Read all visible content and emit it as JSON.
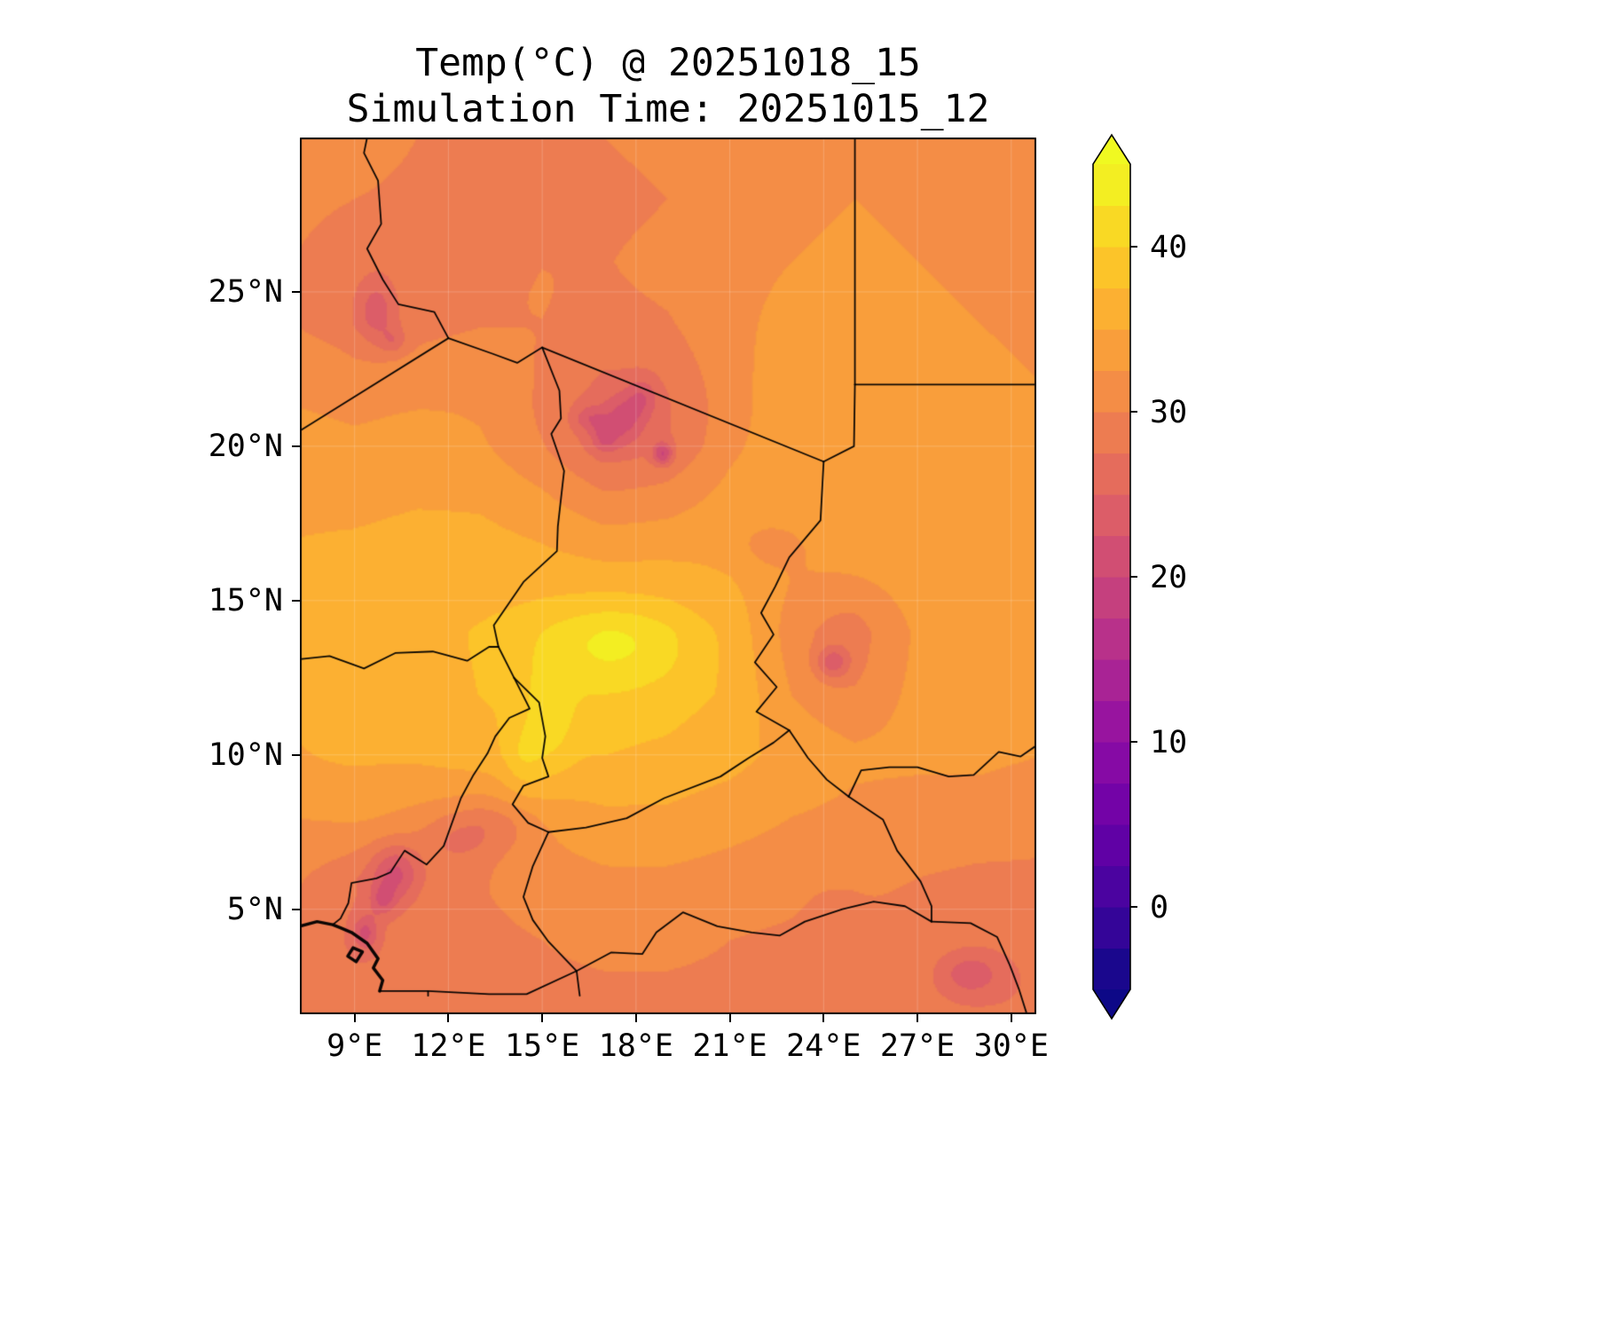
{
  "title": {
    "line1": "Temp(°C) @ 20251018_15",
    "line2": "Simulation Time: 20251015_12"
  },
  "chart_data": {
    "type": "heatmap",
    "title": "Temp(°C) @ 20251018_15",
    "subtitle": "Simulation Time: 20251015_12",
    "variable": "Temperature",
    "units": "°C",
    "lon_range": [
      7.25,
      30.8
    ],
    "lat_range": [
      1.6,
      30.0
    ],
    "x_ticks": [
      {
        "lon": 9,
        "label": "9°E"
      },
      {
        "lon": 12,
        "label": "12°E"
      },
      {
        "lon": 15,
        "label": "15°E"
      },
      {
        "lon": 18,
        "label": "18°E"
      },
      {
        "lon": 21,
        "label": "21°E"
      },
      {
        "lon": 24,
        "label": "24°E"
      },
      {
        "lon": 27,
        "label": "27°E"
      },
      {
        "lon": 30,
        "label": "30°E"
      }
    ],
    "y_ticks": [
      {
        "lat": 5,
        "label": "5°N"
      },
      {
        "lat": 10,
        "label": "10°N"
      },
      {
        "lat": 15,
        "label": "15°N"
      },
      {
        "lat": 20,
        "label": "20°N"
      },
      {
        "lat": 25,
        "label": "25°N"
      }
    ],
    "colorbar": {
      "vmin": -5,
      "vmax": 45,
      "band_step": 2.5,
      "extend": "both",
      "ticks": [
        {
          "value": 40,
          "label": "40"
        },
        {
          "value": 30,
          "label": "30"
        },
        {
          "value": 20,
          "label": "20"
        },
        {
          "value": 10,
          "label": "10"
        },
        {
          "value": 0,
          "label": "0"
        }
      ]
    },
    "colormap": {
      "name": "plasma",
      "stops": [
        [
          0.0,
          "#0d0887"
        ],
        [
          0.1,
          "#41049d"
        ],
        [
          0.2,
          "#6a00a8"
        ],
        [
          0.3,
          "#8f0da4"
        ],
        [
          0.4,
          "#b12a90"
        ],
        [
          0.5,
          "#cc4778"
        ],
        [
          0.6,
          "#e16462"
        ],
        [
          0.7,
          "#f1844b"
        ],
        [
          0.8,
          "#fca636"
        ],
        [
          0.9,
          "#fcce25"
        ],
        [
          1.0,
          "#f0f921"
        ]
      ]
    },
    "grid": {
      "lons": [
        7,
        9,
        11,
        13,
        15,
        17,
        19,
        21,
        23,
        25,
        27,
        29,
        31
      ],
      "lats": [
        30,
        28,
        26,
        24,
        22,
        20,
        18,
        16,
        14,
        12,
        10,
        8,
        6,
        4,
        2
      ],
      "values": [
        [
          31,
          31,
          30,
          29.5,
          29.5,
          30,
          30.5,
          31,
          32,
          32,
          32,
          31.5,
          31
        ],
        [
          30.5,
          30,
          29.5,
          29,
          29,
          29.5,
          30,
          31,
          32,
          32.5,
          32,
          31.5,
          31.5
        ],
        [
          30,
          29,
          29,
          29.5,
          30,
          30,
          30.5,
          31.5,
          32.5,
          33,
          32.5,
          32,
          32
        ],
        [
          30,
          28.5,
          29,
          30,
          30.5,
          30,
          30.5,
          32,
          33.5,
          33.5,
          33,
          32.5,
          32
        ],
        [
          32,
          31.5,
          32,
          32.5,
          31.5,
          30,
          30.5,
          32.5,
          34.5,
          34,
          33.5,
          33,
          32.5
        ],
        [
          33.5,
          33,
          33.5,
          33.5,
          32,
          29.5,
          30,
          33,
          34.5,
          34.5,
          34,
          33.5,
          33
        ],
        [
          34.5,
          34.5,
          35,
          35,
          34,
          32,
          32.5,
          34,
          34.5,
          34.5,
          34.5,
          34,
          33.5
        ],
        [
          35.5,
          36,
          36.5,
          36.5,
          36,
          35.5,
          35.5,
          35,
          33.5,
          34,
          34.5,
          34,
          33.5
        ],
        [
          36,
          36.5,
          37,
          37.5,
          38,
          38.5,
          38,
          36.5,
          32.5,
          31.5,
          33.5,
          34.5,
          34
        ],
        [
          35.5,
          36,
          36.5,
          37.5,
          38.5,
          39,
          38.5,
          37,
          33,
          31.5,
          33.5,
          34,
          33.5
        ],
        [
          34,
          35,
          35.5,
          36.5,
          37,
          37.5,
          37,
          36,
          34,
          33,
          33,
          33,
          32.5
        ],
        [
          32.5,
          33,
          32,
          31,
          33.5,
          34.5,
          34.5,
          33.5,
          32.5,
          32,
          31.5,
          31.5,
          31
        ],
        [
          30.5,
          28,
          29,
          30,
          31,
          32,
          32,
          31.5,
          31,
          30.5,
          30,
          29.5,
          29.5
        ],
        [
          29,
          27.5,
          28.5,
          29.5,
          30,
          30.5,
          30.5,
          30,
          29.5,
          29.5,
          29,
          28.5,
          28
        ],
        [
          28.5,
          28,
          28.5,
          29,
          29.5,
          29.5,
          29.5,
          29.5,
          29,
          29,
          28.5,
          28,
          27.5
        ]
      ]
    },
    "anomalies": [
      [
        17.5,
        21.0,
        2.5,
        1.8,
        -3.5
      ],
      [
        17.6,
        20.9,
        0.45,
        0.55,
        -5
      ],
      [
        18.2,
        21.6,
        0.35,
        0.45,
        -4
      ],
      [
        17.0,
        20.3,
        0.3,
        0.35,
        -4.5
      ],
      [
        18.85,
        19.75,
        0.22,
        0.25,
        -8
      ],
      [
        16.5,
        20.9,
        0.35,
        0.3,
        -4
      ],
      [
        9.7,
        24.4,
        0.45,
        0.8,
        -5
      ],
      [
        10.25,
        23.4,
        0.3,
        0.3,
        -3.5
      ],
      [
        24.3,
        13.0,
        0.38,
        0.38,
        -6.5
      ],
      [
        24.6,
        14.0,
        1.4,
        1.6,
        -2.5
      ],
      [
        22.3,
        16.8,
        0.8,
        0.55,
        -2.5
      ],
      [
        10.3,
        6.2,
        0.55,
        0.65,
        -7
      ],
      [
        9.9,
        5.3,
        0.3,
        0.35,
        -5
      ],
      [
        9.35,
        4.25,
        0.28,
        0.4,
        -6
      ],
      [
        12.2,
        7.2,
        0.8,
        0.6,
        -3
      ],
      [
        13.6,
        7.7,
        1.0,
        0.6,
        -2.5
      ],
      [
        17.3,
        13.6,
        1.7,
        0.95,
        4.5
      ],
      [
        15.3,
        11.2,
        0.55,
        1.3,
        3.5
      ],
      [
        14.4,
        9.9,
        0.45,
        0.9,
        3
      ],
      [
        8.6,
        10.6,
        0.9,
        0.55,
        2
      ],
      [
        28.7,
        2.9,
        0.7,
        0.5,
        -5
      ],
      [
        24.4,
        4.9,
        0.5,
        0.4,
        -2.5
      ]
    ],
    "borders": [
      [
        [
          7.25,
          20.5
        ],
        [
          12.0,
          23.5
        ]
      ],
      [
        [
          12.0,
          23.5
        ],
        [
          13.4,
          23.0
        ],
        [
          14.2,
          22.7
        ],
        [
          15.0,
          23.2
        ]
      ],
      [
        [
          15.0,
          23.2
        ],
        [
          24.0,
          19.5
        ]
      ],
      [
        [
          25.0,
          30.0
        ],
        [
          25.0,
          22.0
        ]
      ],
      [
        [
          25.0,
          22.0
        ],
        [
          30.8,
          22.0
        ]
      ],
      [
        [
          25.0,
          22.0
        ],
        [
          24.97,
          20.0
        ],
        [
          24.0,
          19.5
        ]
      ],
      [
        [
          24.0,
          19.5
        ],
        [
          23.9,
          17.6
        ],
        [
          22.9,
          16.4
        ],
        [
          22.45,
          15.45
        ],
        [
          22.0,
          14.6
        ],
        [
          22.4,
          13.9
        ],
        [
          21.8,
          13.0
        ],
        [
          22.5,
          12.2
        ],
        [
          21.85,
          11.4
        ],
        [
          22.9,
          10.8
        ]
      ],
      [
        [
          22.9,
          10.8
        ],
        [
          23.5,
          9.9
        ],
        [
          24.1,
          9.2
        ],
        [
          24.8,
          8.65
        ]
      ],
      [
        [
          24.8,
          8.65
        ],
        [
          25.2,
          9.5
        ],
        [
          26.1,
          9.6
        ],
        [
          27.0,
          9.6
        ],
        [
          28.0,
          9.3
        ],
        [
          28.8,
          9.35
        ],
        [
          29.6,
          10.1
        ],
        [
          30.3,
          9.95
        ],
        [
          30.8,
          10.3
        ]
      ],
      [
        [
          24.8,
          8.65
        ],
        [
          25.9,
          7.9
        ],
        [
          26.35,
          6.9
        ],
        [
          27.1,
          5.9
        ],
        [
          27.45,
          5.1
        ],
        [
          27.45,
          4.6
        ]
      ],
      [
        [
          27.45,
          4.6
        ],
        [
          28.7,
          4.55
        ],
        [
          29.55,
          4.1
        ],
        [
          29.95,
          3.2
        ],
        [
          30.25,
          2.4
        ],
        [
          30.5,
          1.6
        ]
      ],
      [
        [
          16.1,
          3.0
        ],
        [
          17.2,
          3.6
        ],
        [
          18.2,
          3.55
        ],
        [
          18.65,
          4.25
        ],
        [
          19.5,
          4.9
        ],
        [
          20.6,
          4.45
        ],
        [
          21.7,
          4.25
        ],
        [
          22.6,
          4.15
        ],
        [
          23.4,
          4.6
        ],
        [
          24.6,
          5.0
        ],
        [
          25.6,
          5.25
        ],
        [
          26.6,
          5.1
        ],
        [
          27.45,
          4.6
        ]
      ],
      [
        [
          12.0,
          23.5
        ],
        [
          11.55,
          24.35
        ],
        [
          10.4,
          24.6
        ],
        [
          9.9,
          25.4
        ],
        [
          9.4,
          26.4
        ],
        [
          9.85,
          27.2
        ],
        [
          9.75,
          28.6
        ],
        [
          9.3,
          29.5
        ],
        [
          9.4,
          30.0
        ]
      ],
      [
        [
          15.0,
          23.2
        ],
        [
          15.55,
          21.8
        ],
        [
          15.6,
          20.9
        ],
        [
          15.29,
          20.4
        ],
        [
          15.7,
          19.2
        ],
        [
          15.5,
          17.4
        ],
        [
          15.47,
          16.6
        ],
        [
          14.4,
          15.6
        ],
        [
          13.45,
          14.2
        ],
        [
          13.6,
          13.5
        ]
      ],
      [
        [
          7.25,
          13.1
        ],
        [
          8.2,
          13.2
        ],
        [
          9.3,
          12.8
        ],
        [
          10.3,
          13.3
        ],
        [
          11.5,
          13.35
        ],
        [
          12.6,
          13.05
        ],
        [
          13.3,
          13.5
        ],
        [
          13.6,
          13.5
        ]
      ],
      [
        [
          13.6,
          13.5
        ],
        [
          14.1,
          12.5
        ]
      ],
      [
        [
          14.1,
          12.5
        ],
        [
          14.6,
          11.5
        ],
        [
          13.95,
          11.2
        ],
        [
          13.5,
          10.6
        ],
        [
          13.25,
          10.05
        ],
        [
          12.8,
          9.35
        ],
        [
          12.4,
          8.6
        ],
        [
          11.85,
          7.05
        ],
        [
          11.3,
          6.45
        ],
        [
          10.6,
          6.9
        ],
        [
          10.15,
          6.2
        ],
        [
          9.7,
          6.0
        ],
        [
          8.9,
          5.85
        ],
        [
          8.8,
          5.2
        ],
        [
          8.55,
          4.7
        ],
        [
          8.3,
          4.5
        ]
      ],
      [
        [
          14.1,
          12.5
        ],
        [
          14.9,
          11.7
        ],
        [
          15.1,
          10.6
        ],
        [
          15.0,
          9.9
        ],
        [
          15.2,
          9.3
        ],
        [
          14.4,
          9.0
        ],
        [
          14.05,
          8.4
        ],
        [
          14.55,
          7.8
        ],
        [
          15.2,
          7.5
        ]
      ],
      [
        [
          15.2,
          7.5
        ],
        [
          16.4,
          7.65
        ],
        [
          17.7,
          7.95
        ],
        [
          18.9,
          8.6
        ],
        [
          20.7,
          9.3
        ],
        [
          21.6,
          9.9
        ],
        [
          22.4,
          10.4
        ],
        [
          22.9,
          10.8
        ]
      ],
      [
        [
          15.2,
          7.5
        ],
        [
          14.7,
          6.4
        ],
        [
          14.4,
          5.4
        ],
        [
          14.7,
          4.65
        ],
        [
          15.2,
          3.95
        ],
        [
          16.1,
          3.0
        ],
        [
          16.2,
          2.2
        ]
      ],
      [
        [
          9.8,
          2.35
        ],
        [
          11.35,
          2.35
        ],
        [
          11.35,
          2.2
        ]
      ],
      [
        [
          11.35,
          2.35
        ],
        [
          13.3,
          2.25
        ],
        [
          14.5,
          2.25
        ],
        [
          16.1,
          3.0
        ]
      ]
    ],
    "coastlines": [
      [
        [
          7.25,
          4.45
        ],
        [
          7.8,
          4.6
        ],
        [
          8.3,
          4.5
        ],
        [
          8.55,
          4.4
        ],
        [
          8.9,
          4.25
        ],
        [
          9.4,
          3.9
        ],
        [
          9.75,
          3.4
        ],
        [
          9.6,
          3.1
        ],
        [
          9.9,
          2.7
        ],
        [
          9.8,
          2.35
        ]
      ],
      [
        [
          8.95,
          3.75
        ],
        [
          9.25,
          3.62
        ],
        [
          9.05,
          3.3
        ],
        [
          8.78,
          3.48
        ],
        [
          8.95,
          3.75
        ]
      ]
    ],
    "legend_position": "right",
    "grid_on": true,
    "frame_color": "#000000",
    "background_color": "#ffffff"
  }
}
